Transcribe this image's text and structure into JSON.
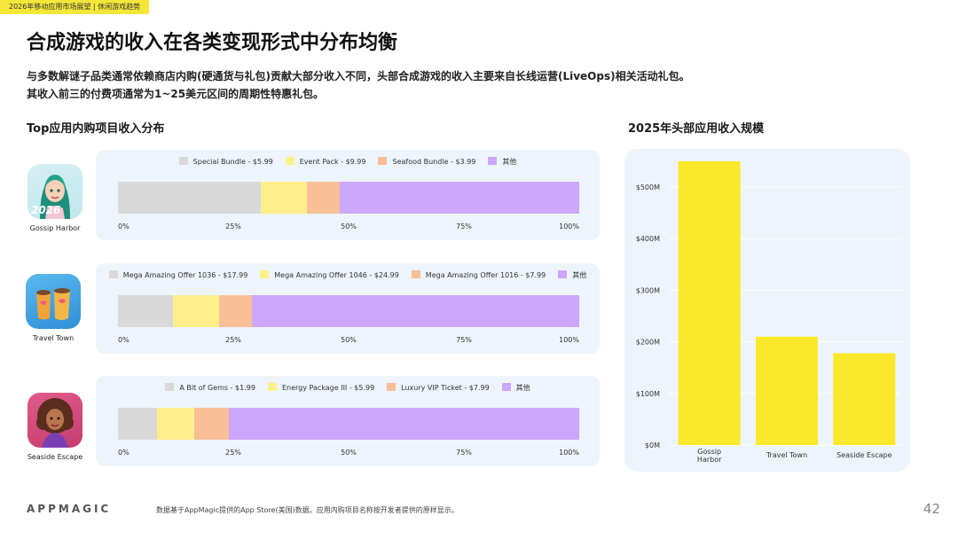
{
  "header": {
    "tag": "2026年移动应用市场展望 | 休闲游戏趋势",
    "title": "合成游戏的收入在各类变现形式中分布均衡",
    "desc_line1": "与多数解谜子品类通常依赖商店内购(硬通货与礼包)贡献大部分收入不同，头部合成游戏的收入主要来自长线运营(LiveOps)相关活动礼包。",
    "desc_line2": "其收入前三的付费项通常为1~25美元区间的周期性特惠礼包。"
  },
  "left_section_title": "Top应用内购项目收入分布",
  "right_section_title": "2025年头部应用收入规模",
  "colors": {
    "grey": "#d9d9d9",
    "yellow": "#fdf08a",
    "peach": "#f9bf97",
    "purple": "#cda7fb",
    "bar_yellow": "#fbe82a"
  },
  "apps": [
    {
      "name": "Gossip Harbor",
      "icon": "gossip-harbor-icon",
      "badge": "2026"
    },
    {
      "name": "Travel Town",
      "icon": "travel-town-icon"
    },
    {
      "name": "Seaside Escape",
      "icon": "seaside-escape-icon"
    }
  ],
  "axis_ticks": [
    "0%",
    "25%",
    "50%",
    "75%",
    "100%"
  ],
  "footer": {
    "logo": "APPMAGIC",
    "note": "数据基于AppMagic提供的App Store(美国)数据。应用内购项目名称按开发者提供的原样显示。",
    "page": "42"
  },
  "chart_data": [
    {
      "type": "bar",
      "orientation": "horizontal-stacked-100",
      "app": "Gossip Harbor",
      "series": [
        {
          "name": "Special Bundle - $5.99",
          "value": 31,
          "color": "#d9d9d9"
        },
        {
          "name": "Event Pack - $9.99",
          "value": 10,
          "color": "#fdf08a"
        },
        {
          "name": "Seafood Bundle - $3.99",
          "value": 7,
          "color": "#f9bf97"
        },
        {
          "name": "其他",
          "value": 52,
          "color": "#cda7fb"
        }
      ],
      "xlim": [
        0,
        100
      ]
    },
    {
      "type": "bar",
      "orientation": "horizontal-stacked-100",
      "app": "Travel Town",
      "series": [
        {
          "name": "Mega Amazing Offer 1036 - $17.99",
          "value": 12,
          "color": "#d9d9d9"
        },
        {
          "name": "Mega Amazing Offer 1046 - $24.99",
          "value": 10,
          "color": "#fdf08a"
        },
        {
          "name": "Mega Amazing Offer 1016 - $7.99",
          "value": 7,
          "color": "#f9bf97"
        },
        {
          "name": "其他",
          "value": 71,
          "color": "#cda7fb"
        }
      ],
      "xlim": [
        0,
        100
      ]
    },
    {
      "type": "bar",
      "orientation": "horizontal-stacked-100",
      "app": "Seaside Escape",
      "series": [
        {
          "name": "A Bit of Gems - $1.99",
          "value": 8.5,
          "color": "#d9d9d9"
        },
        {
          "name": "Energy Package III - $5.99",
          "value": 8,
          "color": "#fdf08a"
        },
        {
          "name": "Luxury VIP Ticket - $7.99",
          "value": 7.5,
          "color": "#f9bf97"
        },
        {
          "name": "其他",
          "value": 76,
          "color": "#cda7fb"
        }
      ],
      "xlim": [
        0,
        100
      ]
    },
    {
      "type": "bar",
      "title": "2025年头部应用收入规模",
      "categories": [
        "Gossip\nHarbor",
        "Travel Town",
        "Seaside Escape"
      ],
      "values": [
        550,
        210,
        178
      ],
      "unit": "M",
      "y_ticks": [
        "$0M",
        "$100M",
        "$200M",
        "$300M",
        "$400M",
        "$500M"
      ],
      "ylim": [
        0,
        560
      ],
      "color": "#fbe82a",
      "grid": true
    }
  ]
}
